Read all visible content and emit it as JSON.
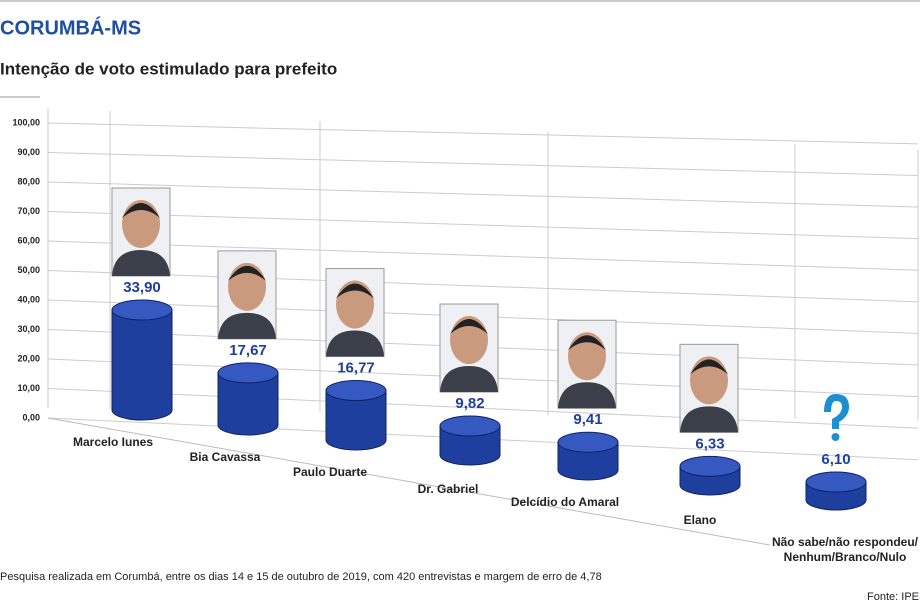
{
  "chart_data": {
    "type": "bar",
    "title": "CORUMBÁ-MS",
    "subtitle": "Intenção de voto estimulado para prefeito",
    "note": "Pesquisa realizada em Corumbá, entre os dias 14 e 15 de outubro de 2019, com 420 entrevistas e margem de erro de 4,78",
    "source": "Fonte: IPE",
    "categories": [
      "Marcelo Iunes",
      "Bia Cavassa",
      "Paulo Duarte",
      "Dr. Gabriel",
      "Delcídio do Amaral",
      "Elano",
      "Não sabe/não respondeu/ Nenhum/Branco/Nulo"
    ],
    "values": [
      33.9,
      17.67,
      16.77,
      9.82,
      9.41,
      6.33,
      6.1
    ],
    "value_labels": [
      "33,90",
      "17,67",
      "16,77",
      "9,82",
      "9,41",
      "6,33",
      "6,10"
    ],
    "color": "#1f3f9e",
    "ylim": [
      0,
      100
    ],
    "yticks": [
      {
        "value": 0,
        "label": "0,00"
      },
      {
        "value": 10,
        "label": "10,00"
      },
      {
        "value": 20,
        "label": "20,00"
      },
      {
        "value": 30,
        "label": "30,00"
      },
      {
        "value": 40,
        "label": "40,00"
      },
      {
        "value": 50,
        "label": "50,00"
      },
      {
        "value": 60,
        "label": "60,00"
      },
      {
        "value": 70,
        "label": "70,00"
      },
      {
        "value": 80,
        "label": "80,00"
      },
      {
        "value": 90,
        "label": "90,00"
      },
      {
        "value": 100,
        "label": "100,00"
      }
    ],
    "grid": true
  }
}
